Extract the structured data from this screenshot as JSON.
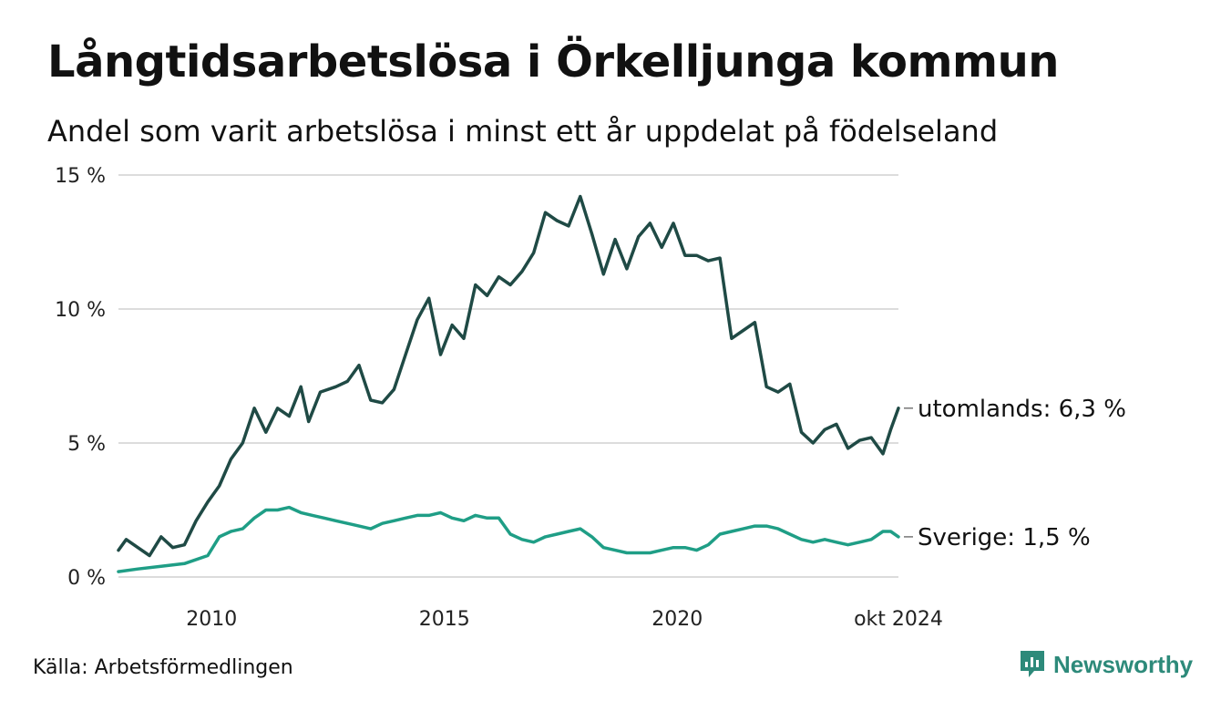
{
  "title": "Långtidsarbetslösa i Örkelljunga kommun",
  "subtitle": "Andel som varit arbetslösa i minst ett år uppdelat på födelseland",
  "source": "Källa: Arbetsförmedlingen",
  "brand": {
    "name": "Newsworthy",
    "icon": "newsworthy-logo-icon",
    "color": "#2d8a7a"
  },
  "chart_data": {
    "type": "line",
    "x_range": [
      "2008-01",
      "2024-10"
    ],
    "ylim": [
      0,
      15
    ],
    "yticks": [
      "0 %",
      "5 %",
      "10 %",
      "15 %"
    ],
    "xticks": [
      {
        "date": "2010-01",
        "label": "2010"
      },
      {
        "date": "2015-01",
        "label": "2015"
      },
      {
        "date": "2020-01",
        "label": "2020"
      },
      {
        "date": "2024-10",
        "label": "okt 2024"
      }
    ],
    "grid": true,
    "series": [
      {
        "name": "utomlands",
        "end_label": "utomlands: 6,3 %",
        "color": "#1f4a45",
        "points": [
          [
            "2008-01",
            1.0
          ],
          [
            "2008-03",
            1.4
          ],
          [
            "2008-06",
            1.1
          ],
          [
            "2008-09",
            0.8
          ],
          [
            "2008-12",
            1.5
          ],
          [
            "2009-03",
            1.1
          ],
          [
            "2009-06",
            1.2
          ],
          [
            "2009-09",
            2.1
          ],
          [
            "2009-12",
            2.8
          ],
          [
            "2010-03",
            3.4
          ],
          [
            "2010-06",
            4.4
          ],
          [
            "2010-09",
            5.0
          ],
          [
            "2010-12",
            6.3
          ],
          [
            "2011-03",
            5.4
          ],
          [
            "2011-06",
            6.3
          ],
          [
            "2011-09",
            6.0
          ],
          [
            "2011-12",
            7.1
          ],
          [
            "2012-02",
            5.8
          ],
          [
            "2012-05",
            6.9
          ],
          [
            "2012-09",
            7.1
          ],
          [
            "2012-12",
            7.3
          ],
          [
            "2013-03",
            7.9
          ],
          [
            "2013-06",
            6.6
          ],
          [
            "2013-09",
            6.5
          ],
          [
            "2013-12",
            7.0
          ],
          [
            "2014-03",
            8.3
          ],
          [
            "2014-06",
            9.6
          ],
          [
            "2014-09",
            10.4
          ],
          [
            "2014-12",
            8.3
          ],
          [
            "2015-03",
            9.4
          ],
          [
            "2015-06",
            8.9
          ],
          [
            "2015-09",
            10.9
          ],
          [
            "2015-12",
            10.5
          ],
          [
            "2016-03",
            11.2
          ],
          [
            "2016-06",
            10.9
          ],
          [
            "2016-09",
            11.4
          ],
          [
            "2016-12",
            12.1
          ],
          [
            "2017-03",
            13.6
          ],
          [
            "2017-06",
            13.3
          ],
          [
            "2017-09",
            13.1
          ],
          [
            "2017-12",
            14.2
          ],
          [
            "2018-03",
            12.8
          ],
          [
            "2018-06",
            11.3
          ],
          [
            "2018-09",
            12.6
          ],
          [
            "2018-12",
            11.5
          ],
          [
            "2019-03",
            12.7
          ],
          [
            "2019-06",
            13.2
          ],
          [
            "2019-09",
            12.3
          ],
          [
            "2019-12",
            13.2
          ],
          [
            "2020-03",
            12.0
          ],
          [
            "2020-06",
            12.0
          ],
          [
            "2020-09",
            11.8
          ],
          [
            "2020-12",
            11.9
          ],
          [
            "2021-03",
            8.9
          ],
          [
            "2021-06",
            9.2
          ],
          [
            "2021-09",
            9.5
          ],
          [
            "2021-12",
            7.1
          ],
          [
            "2022-03",
            6.9
          ],
          [
            "2022-06",
            7.2
          ],
          [
            "2022-09",
            5.4
          ],
          [
            "2022-12",
            5.0
          ],
          [
            "2023-03",
            5.5
          ],
          [
            "2023-06",
            5.7
          ],
          [
            "2023-09",
            4.8
          ],
          [
            "2023-12",
            5.1
          ],
          [
            "2024-03",
            5.2
          ],
          [
            "2024-06",
            4.6
          ],
          [
            "2024-08",
            5.5
          ],
          [
            "2024-10",
            6.3
          ]
        ]
      },
      {
        "name": "Sverige",
        "end_label": "Sverige: 1,5 %",
        "color": "#1f9e86",
        "points": [
          [
            "2008-01",
            0.2
          ],
          [
            "2008-06",
            0.3
          ],
          [
            "2008-12",
            0.4
          ],
          [
            "2009-06",
            0.5
          ],
          [
            "2009-12",
            0.8
          ],
          [
            "2010-03",
            1.5
          ],
          [
            "2010-06",
            1.7
          ],
          [
            "2010-09",
            1.8
          ],
          [
            "2010-12",
            2.2
          ],
          [
            "2011-03",
            2.5
          ],
          [
            "2011-06",
            2.5
          ],
          [
            "2011-09",
            2.6
          ],
          [
            "2011-12",
            2.4
          ],
          [
            "2012-03",
            2.3
          ],
          [
            "2012-06",
            2.2
          ],
          [
            "2012-09",
            2.1
          ],
          [
            "2012-12",
            2.0
          ],
          [
            "2013-03",
            1.9
          ],
          [
            "2013-06",
            1.8
          ],
          [
            "2013-09",
            2.0
          ],
          [
            "2013-12",
            2.1
          ],
          [
            "2014-03",
            2.2
          ],
          [
            "2014-06",
            2.3
          ],
          [
            "2014-09",
            2.3
          ],
          [
            "2014-12",
            2.4
          ],
          [
            "2015-03",
            2.2
          ],
          [
            "2015-06",
            2.1
          ],
          [
            "2015-09",
            2.3
          ],
          [
            "2015-12",
            2.2
          ],
          [
            "2016-03",
            2.2
          ],
          [
            "2016-06",
            1.6
          ],
          [
            "2016-09",
            1.4
          ],
          [
            "2016-12",
            1.3
          ],
          [
            "2017-03",
            1.5
          ],
          [
            "2017-06",
            1.6
          ],
          [
            "2017-09",
            1.7
          ],
          [
            "2017-12",
            1.8
          ],
          [
            "2018-03",
            1.5
          ],
          [
            "2018-06",
            1.1
          ],
          [
            "2018-09",
            1.0
          ],
          [
            "2018-12",
            0.9
          ],
          [
            "2019-03",
            0.9
          ],
          [
            "2019-06",
            0.9
          ],
          [
            "2019-09",
            1.0
          ],
          [
            "2019-12",
            1.1
          ],
          [
            "2020-03",
            1.1
          ],
          [
            "2020-06",
            1.0
          ],
          [
            "2020-09",
            1.2
          ],
          [
            "2020-12",
            1.6
          ],
          [
            "2021-03",
            1.7
          ],
          [
            "2021-06",
            1.8
          ],
          [
            "2021-09",
            1.9
          ],
          [
            "2021-12",
            1.9
          ],
          [
            "2022-03",
            1.8
          ],
          [
            "2022-06",
            1.6
          ],
          [
            "2022-09",
            1.4
          ],
          [
            "2022-12",
            1.3
          ],
          [
            "2023-03",
            1.4
          ],
          [
            "2023-06",
            1.3
          ],
          [
            "2023-09",
            1.2
          ],
          [
            "2023-12",
            1.3
          ],
          [
            "2024-03",
            1.4
          ],
          [
            "2024-06",
            1.7
          ],
          [
            "2024-08",
            1.7
          ],
          [
            "2024-10",
            1.5
          ]
        ]
      }
    ]
  }
}
